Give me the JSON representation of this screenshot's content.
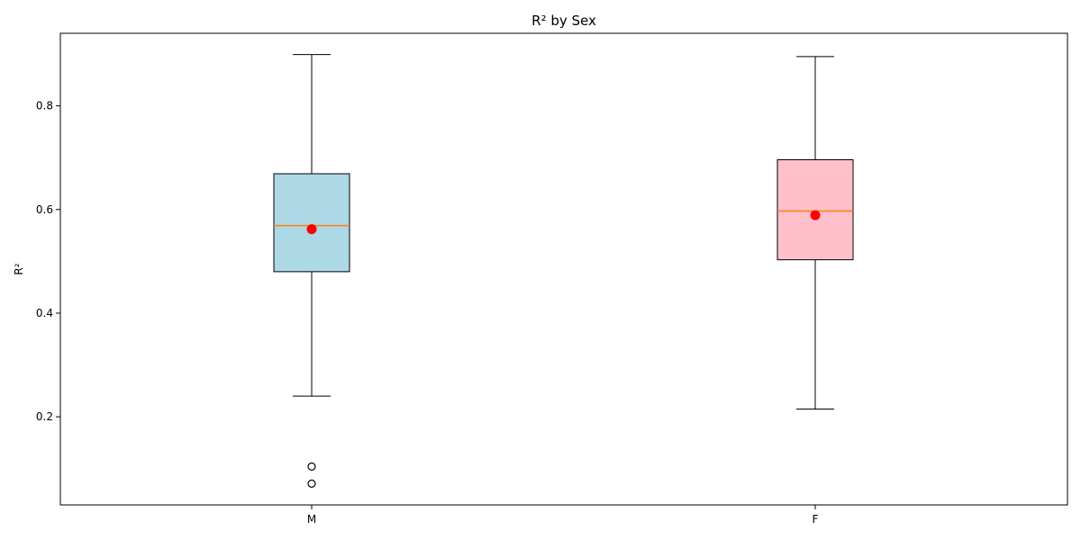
{
  "chart_data": {
    "type": "box",
    "title": "R² by Sex",
    "xlabel": "",
    "ylabel": "R²",
    "ylim": [
      0.03,
      0.94
    ],
    "yticks": [
      0.2,
      0.4,
      0.6,
      0.8
    ],
    "ytick_labels": [
      "0.2",
      "0.4",
      "0.6",
      "0.8"
    ],
    "grid": false,
    "categories": [
      "M",
      "F"
    ],
    "boxes": [
      {
        "category": "M",
        "whisker_low": 0.24,
        "q1": 0.48,
        "median": 0.569,
        "q3": 0.669,
        "whisker_high": 0.899,
        "mean": 0.562,
        "outliers": [
          0.104,
          0.071
        ],
        "fill_color": "#add8e6"
      },
      {
        "category": "F",
        "whisker_low": 0.215,
        "q1": 0.503,
        "median": 0.597,
        "q3": 0.696,
        "whisker_high": 0.895,
        "mean": 0.589,
        "outliers": [],
        "fill_color": "#ffc0cb"
      }
    ],
    "median_color": "#ff7f0e",
    "mean_color": "#ff0000"
  }
}
